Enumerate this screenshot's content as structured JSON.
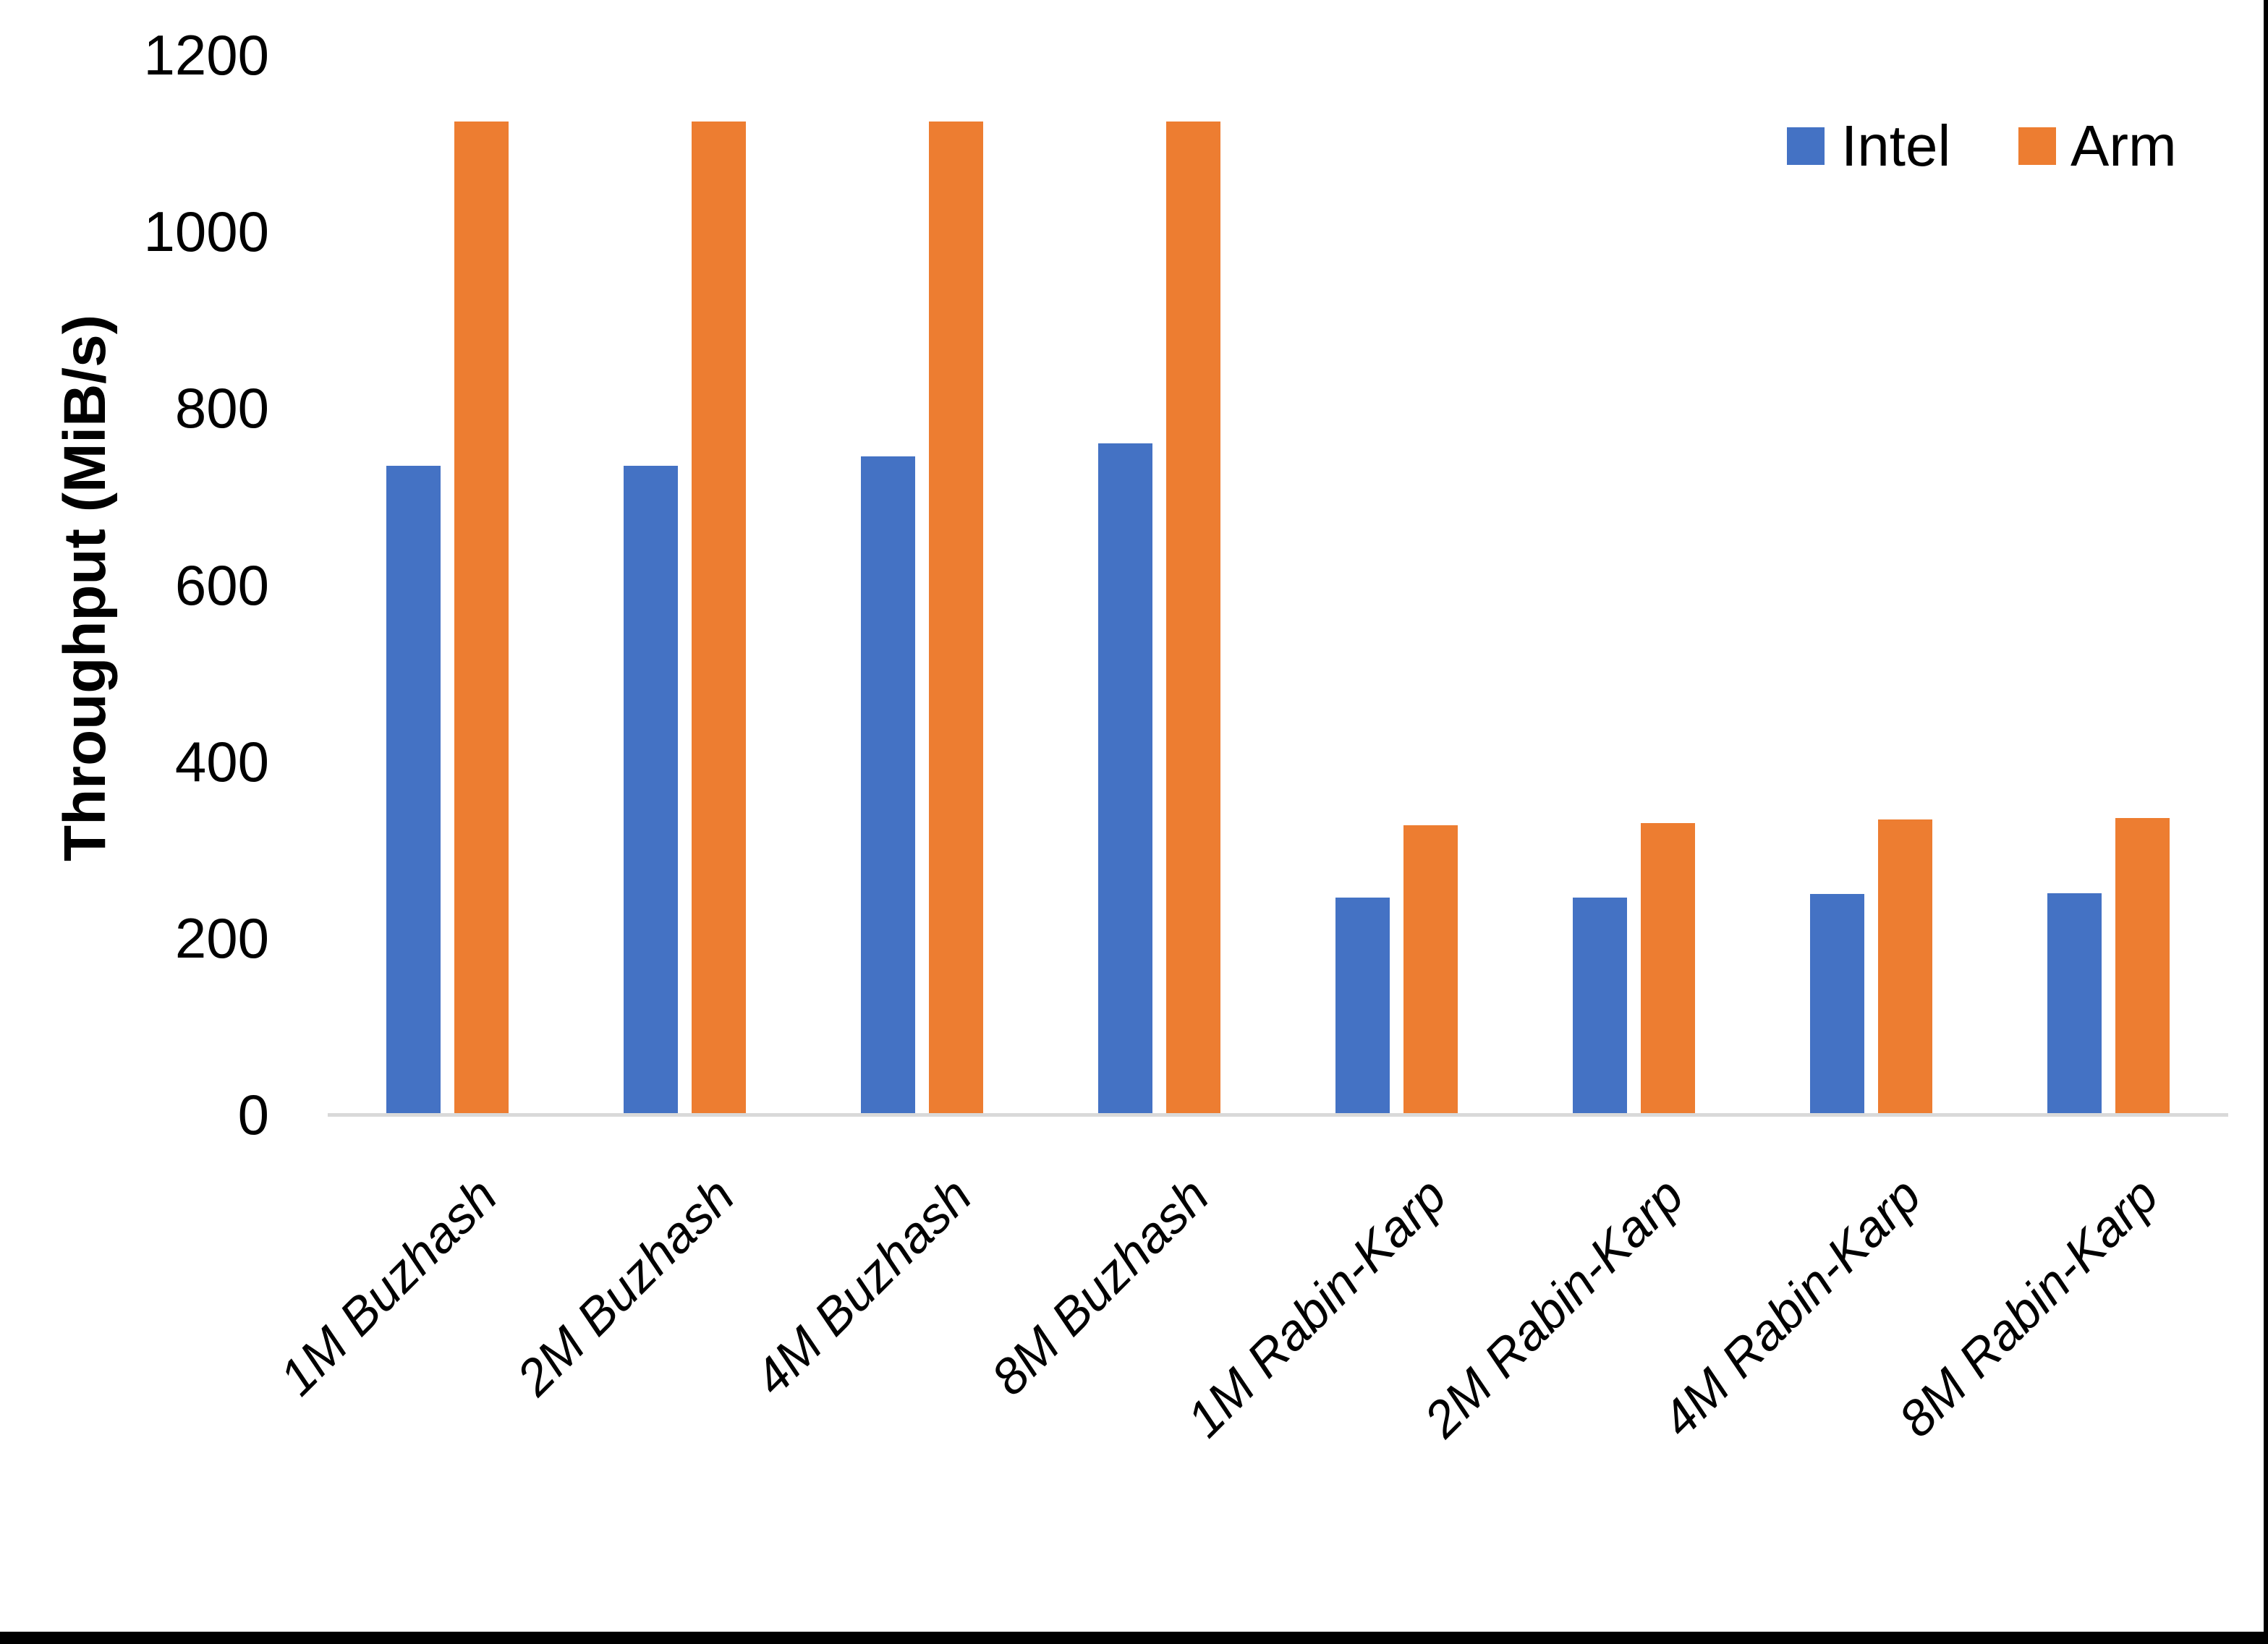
{
  "chart_data": {
    "type": "bar",
    "title": "",
    "xlabel": "",
    "ylabel": "Throughput (MiB/s)",
    "ylim": [
      0,
      1200
    ],
    "yticks": [
      0,
      200,
      400,
      600,
      800,
      1000,
      1200
    ],
    "grid": false,
    "legend_position": "top-right",
    "categories": [
      "1M Buzhash",
      "2M Buzhash",
      "4M Buzhash",
      "8M Buzhash",
      "1M Rabin-Karp",
      "2M Rabin-Karp",
      "4M Rabin-Karp",
      "8M Rabin-Karp"
    ],
    "series": [
      {
        "name": "Intel",
        "color": "#4472C4",
        "values": [
          735,
          735,
          745,
          760,
          246,
          246,
          250,
          251
        ]
      },
      {
        "name": "Arm",
        "color": "#ED7D31",
        "values": [
          1125,
          1125,
          1125,
          1125,
          328,
          330,
          334,
          336
        ]
      }
    ]
  },
  "colors": {
    "axis_line": "#d9d9d9",
    "text": "#000000",
    "background": "#ffffff",
    "figure_border": "#000000"
  }
}
